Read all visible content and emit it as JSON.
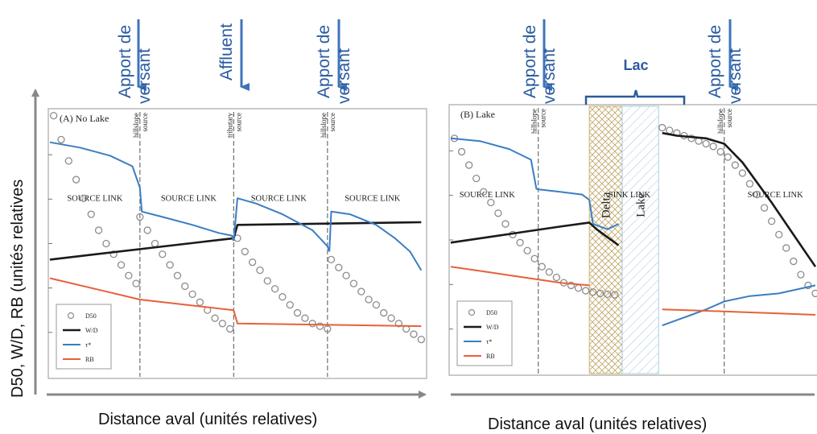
{
  "annotations": {
    "apport_line1": "Apport de",
    "apport_line2": "versant",
    "affluent": "Affluent",
    "lac": "Lac"
  },
  "axes": {
    "ylabel": "D50, W/D, RB (unités relatives",
    "xlabel_left": "Distance aval (unités relatives)",
    "xlabel_right": "Distance aval (unités relatives)"
  },
  "colors": {
    "d50": "#8c8c8c",
    "wd": "#1a1a1a",
    "tau": "#3b7dc4",
    "rb": "#e8603c",
    "arrow": "#3f74b8",
    "annotation_text": "#2a5aa0",
    "delta": "#c9b27a",
    "lake": "#a8cfe0"
  },
  "chart_data": [
    {
      "type": "line",
      "title": "(A) No Lake",
      "xlim": [
        0,
        100
      ],
      "ylim": [
        0,
        100
      ],
      "legend": [
        "D50",
        "W/D",
        "τ*",
        "RB"
      ],
      "legend_position": "bottom-left",
      "dividers": [
        {
          "x": 24,
          "line1": "hillslope",
          "line2": "source"
        },
        {
          "x": 49,
          "line1": "tributary",
          "line2": "source"
        },
        {
          "x": 74,
          "line1": "hillslope",
          "line2": "source"
        }
      ],
      "segment_labels": [
        {
          "x": 12,
          "text": "SOURCE LINK"
        },
        {
          "x": 37,
          "text": "SOURCE LINK"
        },
        {
          "x": 61,
          "text": "SOURCE LINK"
        },
        {
          "x": 86,
          "text": "SOURCE LINK"
        }
      ],
      "series": [
        {
          "name": "D50",
          "style": "circles",
          "segments": [
            {
              "x": [
                1,
                3,
                5,
                7,
                9,
                11,
                13,
                15,
                17,
                19,
                21,
                23
              ],
              "y": [
                98,
                89,
                81,
                74,
                67,
                61,
                55,
                50,
                46,
                42,
                38,
                35
              ]
            },
            {
              "x": [
                24,
                26,
                28,
                30,
                32,
                34,
                36,
                38,
                40,
                42,
                44,
                46,
                48
              ],
              "y": [
                60,
                55,
                50,
                46,
                42,
                38,
                34,
                31,
                28,
                25,
                22,
                20,
                18
              ]
            },
            {
              "x": [
                50,
                52,
                54,
                56,
                58,
                60,
                62,
                64,
                66,
                68,
                70,
                72,
                74
              ],
              "y": [
                52,
                47,
                43,
                40,
                36,
                33,
                30,
                27,
                24,
                22,
                20,
                19,
                18
              ]
            },
            {
              "x": [
                75,
                77,
                79,
                81,
                83,
                85,
                87,
                89,
                91,
                93,
                95,
                97,
                99
              ],
              "y": [
                44,
                41,
                38,
                35,
                32,
                29,
                27,
                24,
                22,
                20,
                18,
                16,
                14
              ]
            }
          ]
        },
        {
          "name": "W/D",
          "style": "line",
          "segments": [
            {
              "x": [
                0,
                49
              ],
              "y": [
                44,
                52
              ]
            },
            {
              "x": [
                49,
                50,
                99
              ],
              "y": [
                52,
                57,
                58
              ]
            }
          ]
        },
        {
          "name": "τ*",
          "style": "line",
          "segments": [
            {
              "x": [
                0,
                8,
                16,
                22,
                24
              ],
              "y": [
                88,
                86,
                83,
                79,
                71
              ]
            },
            {
              "x": [
                24,
                24.5,
                30,
                38,
                45,
                48.5,
                49
              ],
              "y": [
                71,
                62,
                60,
                57,
                54,
                53,
                51
              ]
            },
            {
              "x": [
                49,
                50,
                55,
                62,
                70,
                74,
                74.5
              ],
              "y": [
                51,
                67,
                65,
                61,
                55,
                49,
                47
              ]
            },
            {
              "x": [
                74.5,
                75,
                80,
                87,
                92,
                96,
                99
              ],
              "y": [
                47,
                62,
                61,
                57,
                52,
                47,
                40
              ]
            }
          ]
        },
        {
          "name": "RB",
          "style": "line",
          "segments": [
            {
              "x": [
                0,
                24,
                49
              ],
              "y": [
                37,
                29,
                25
              ]
            },
            {
              "x": [
                49,
                50,
                99
              ],
              "y": [
                25,
                20,
                19
              ]
            }
          ]
        }
      ]
    },
    {
      "type": "line",
      "title": "(B) Lake",
      "xlim": [
        0,
        100
      ],
      "ylim": [
        0,
        100
      ],
      "legend": [
        "D50",
        "W/D",
        "τ*",
        "RB"
      ],
      "legend_position": "bottom-left",
      "dividers": [
        {
          "x": 24,
          "line1": "hillslope",
          "line2": "source"
        },
        {
          "x": 75,
          "line1": "hillslope",
          "line2": "source"
        }
      ],
      "zones": [
        {
          "name": "Delta",
          "x": [
            38,
            47
          ]
        },
        {
          "name": "Lake",
          "x": [
            47,
            57
          ]
        }
      ],
      "segment_labels": [
        {
          "x": 10,
          "text": "SOURCE LINK"
        },
        {
          "x": 49,
          "text": "SINK LINK"
        },
        {
          "x": 89,
          "text": "SOURCE LINK"
        }
      ],
      "series": [
        {
          "name": "D50",
          "style": "circles",
          "segments": [
            {
              "x": [
                1,
                3,
                5,
                7,
                9,
                11,
                13,
                15,
                17,
                19,
                21,
                23,
                25,
                27,
                29,
                31,
                33,
                35,
                37,
                39,
                41,
                43,
                45
              ],
              "y": [
                88,
                83,
                78,
                73,
                68,
                64,
                60,
                56,
                52,
                49,
                46,
                43,
                40,
                38,
                36,
                34,
                33,
                32,
                31,
                30.5,
                30,
                29.7,
                29.5
              ]
            },
            {
              "x": [
                58,
                60,
                62,
                64,
                66,
                68,
                70,
                72,
                74,
                76,
                78,
                80,
                82,
                84,
                86,
                88,
                90,
                92,
                94,
                96,
                98,
                100
              ],
              "y": [
                92,
                91,
                90,
                89,
                88,
                87,
                86,
                85,
                83,
                81,
                78,
                75,
                71,
                67,
                62,
                57,
                52,
                47,
                42,
                37,
                33,
                30
              ]
            }
          ]
        },
        {
          "name": "W/D",
          "style": "line",
          "segments": [
            {
              "x": [
                0,
                10,
                20,
                30,
                38,
                40,
                43,
                46
              ],
              "y": [
                49,
                51,
                53,
                55,
                56.5,
                54,
                51,
                48
              ]
            },
            {
              "x": [
                58,
                62,
                70,
                75,
                80,
                88,
                95,
                100
              ],
              "y": [
                90,
                89,
                88,
                86,
                79,
                64,
                50,
                40
              ]
            }
          ]
        },
        {
          "name": "τ*",
          "style": "line",
          "segments": [
            {
              "x": [
                0,
                8,
                16,
                22,
                23.5
              ],
              "y": [
                88,
                87,
                84,
                80,
                69
              ]
            },
            {
              "x": [
                23.5,
                30,
                36,
                38,
                39,
                41,
                43,
                46
              ],
              "y": [
                69,
                68,
                67,
                65,
                56,
                55,
                54,
                56
              ]
            },
            {
              "x": [
                58,
                62,
                66,
                70,
                75,
                82,
                90,
                100
              ],
              "y": [
                18,
                20,
                22,
                24,
                27,
                29,
                30,
                33
              ]
            }
          ]
        },
        {
          "name": "RB",
          "style": "line",
          "segments": [
            {
              "x": [
                0,
                10,
                20,
                30,
                38
              ],
              "y": [
                40,
                38,
                36,
                34,
                33
              ]
            },
            {
              "x": [
                58,
                70,
                80,
                90,
                100
              ],
              "y": [
                24,
                23.5,
                23,
                22.5,
                22
              ]
            }
          ]
        }
      ]
    }
  ]
}
